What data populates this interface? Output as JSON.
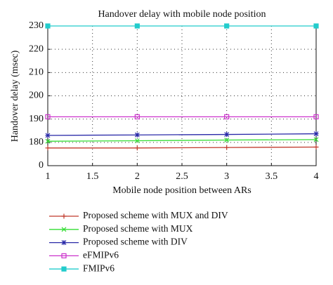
{
  "chart_data": {
    "type": "line",
    "title": "Handover delay with mobile node position",
    "x_label": "Mobile node position between ARs",
    "y_label": "Handover delay (msec)",
    "x": [
      1,
      2,
      3,
      4
    ],
    "xlim": [
      1,
      4
    ],
    "xticks": [
      1,
      1.5,
      2,
      2.5,
      3,
      3.5,
      4
    ],
    "ylim": [
      170,
      230
    ],
    "yticks": [
      {
        "value": 170,
        "label": "0"
      },
      180,
      190,
      200,
      210,
      220,
      230
    ],
    "grid": true,
    "series": [
      {
        "name": "Proposed scheme with MUX and DIV",
        "color": "#c0392b",
        "marker": "plus",
        "values": [
          177.6,
          177.6,
          177.8,
          178.0
        ]
      },
      {
        "name": "Proposed scheme with MUX",
        "color": "#33dd33",
        "marker": "cross",
        "values": [
          180.5,
          180.7,
          181.0,
          181.2
        ]
      },
      {
        "name": "Proposed scheme with DIV",
        "color": "#2a2aa8",
        "marker": "star",
        "values": [
          183.0,
          183.2,
          183.4,
          183.7
        ]
      },
      {
        "name": "eFMIPv6",
        "color": "#cc33cc",
        "marker": "square-open",
        "values": [
          191,
          191,
          191,
          191
        ]
      },
      {
        "name": "FMIPv6",
        "color": "#22cccc",
        "marker": "square",
        "values": [
          230,
          230,
          230,
          230
        ]
      }
    ]
  }
}
